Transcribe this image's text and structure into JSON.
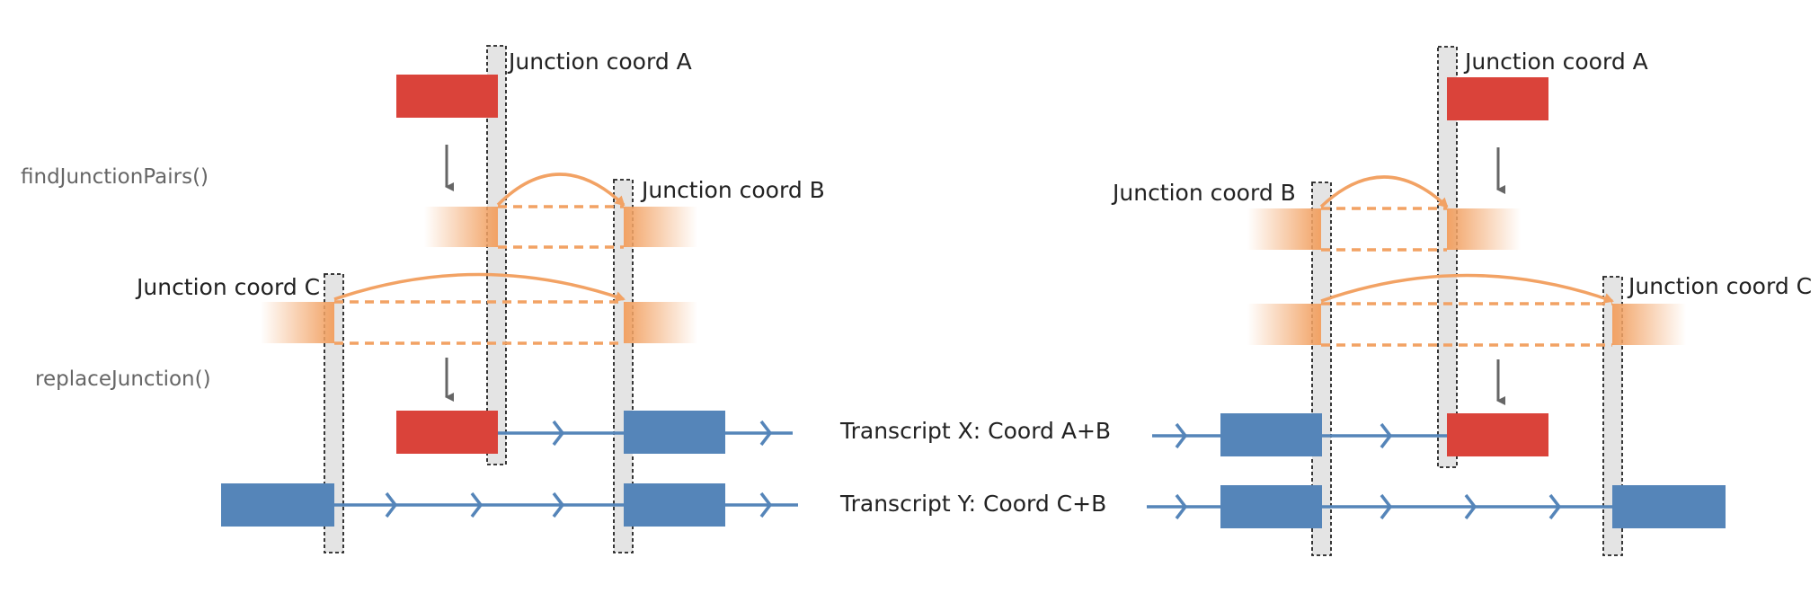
{
  "colors": {
    "exon_blue": "#5585b9",
    "exon_red": "#da433a",
    "orange": "#f2a264",
    "column_fill": "#e4e4e4",
    "arrow_gray": "#666666",
    "text": "#222222",
    "function_text": "#666666"
  },
  "functions": {
    "find_pairs": "findJunctionPairs()",
    "replace": "replaceJunction()"
  },
  "transcripts": {
    "x": "Transcript X: Coord A+B",
    "y": "Transcript Y: Coord C+B"
  },
  "left_panel": {
    "coord_a": "Junction coord A",
    "coord_b": "Junction coord B",
    "coord_c": "Junction coord C"
  },
  "right_panel": {
    "coord_a": "Junction coord A",
    "coord_b": "Junction coord B",
    "coord_c": "Junction coord C"
  }
}
